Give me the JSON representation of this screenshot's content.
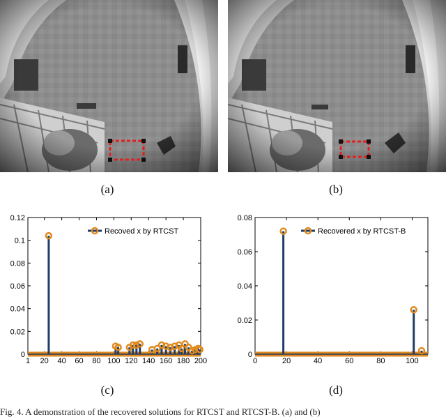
{
  "figure": {
    "subcaptions": [
      "(a)",
      "(b)",
      "(c)",
      "(d)"
    ],
    "caption_fragment": "Fig. 4. A demonstration of the recovered solutions for RTCST and RTCST-B. (a) and (b)"
  },
  "photos": [
    {
      "label": "(a)",
      "box_color": "#e02020"
    },
    {
      "label": "(b)",
      "box_color": "#e02020"
    }
  ],
  "chart_data": [
    {
      "type": "stem",
      "legend": "Recoved x by RTCST",
      "xlim": [
        1,
        200
      ],
      "ylim": [
        0,
        0.12
      ],
      "xticks": [
        1,
        20,
        40,
        60,
        80,
        100,
        120,
        140,
        160,
        180,
        200
      ],
      "xtick_labels": [
        "1",
        "20",
        "40",
        "60",
        "80",
        "100",
        "120",
        "140",
        "160",
        "180",
        "200"
      ],
      "yticks": [
        0,
        0.02,
        0.04,
        0.06,
        0.08,
        0.1,
        0.12
      ],
      "ytick_labels": [
        "0",
        "0.02",
        "0.04",
        "0.06",
        "0.08",
        "0.1",
        "0.12"
      ],
      "stem_color": "#1f3b66",
      "marker_color": "#e08a1e",
      "points": [
        {
          "x": 25,
          "y": 0.104
        },
        {
          "x": 102,
          "y": 0.007
        },
        {
          "x": 105,
          "y": 0.006
        },
        {
          "x": 118,
          "y": 0.006
        },
        {
          "x": 122,
          "y": 0.008
        },
        {
          "x": 126,
          "y": 0.008
        },
        {
          "x": 130,
          "y": 0.009
        },
        {
          "x": 144,
          "y": 0.004
        },
        {
          "x": 150,
          "y": 0.005
        },
        {
          "x": 155,
          "y": 0.008
        },
        {
          "x": 160,
          "y": 0.007
        },
        {
          "x": 165,
          "y": 0.006
        },
        {
          "x": 170,
          "y": 0.007
        },
        {
          "x": 175,
          "y": 0.008
        },
        {
          "x": 178,
          "y": 0.005
        },
        {
          "x": 182,
          "y": 0.009
        },
        {
          "x": 186,
          "y": 0.006
        },
        {
          "x": 190,
          "y": 0.003
        },
        {
          "x": 194,
          "y": 0.004
        },
        {
          "x": 197,
          "y": 0.005
        },
        {
          "x": 199,
          "y": 0.004
        }
      ]
    },
    {
      "type": "stem",
      "legend": "Recovered x by RTCST-B",
      "xlim": [
        0,
        110
      ],
      "ylim": [
        0,
        0.08
      ],
      "xticks": [
        0,
        20,
        40,
        60,
        80,
        100
      ],
      "xtick_labels": [
        "0",
        "20",
        "40",
        "60",
        "80",
        "100"
      ],
      "yticks": [
        0,
        0.02,
        0.04,
        0.06,
        0.08
      ],
      "ytick_labels": [
        "0",
        "0.02",
        "0.04",
        "0.06",
        "0.08"
      ],
      "stem_color": "#1f3b66",
      "marker_color": "#e08a1e",
      "points": [
        {
          "x": 18,
          "y": 0.072
        },
        {
          "x": 101,
          "y": 0.026
        },
        {
          "x": 106,
          "y": 0.002
        }
      ]
    }
  ]
}
